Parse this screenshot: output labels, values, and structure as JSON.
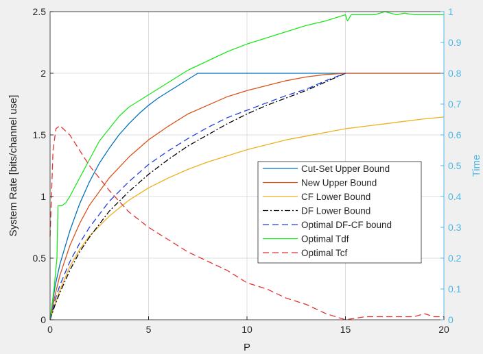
{
  "chart_data": {
    "type": "line",
    "xlabel": "P",
    "ylabel_left": "System Rate [bits/channel use]",
    "ylabel_right": "Time",
    "xlim": [
      0,
      20
    ],
    "ylim_left": [
      0,
      2.5
    ],
    "ylim_right": [
      0,
      1
    ],
    "x_ticks": [
      "0",
      "5",
      "10",
      "15",
      "20"
    ],
    "y_ticks_left": [
      "0",
      "0.5",
      "1",
      "1.5",
      "2",
      "2.5"
    ],
    "y_ticks_right": [
      "0",
      "0.1",
      "0.2",
      "0.3",
      "0.4",
      "0.5",
      "0.6",
      "0.7",
      "0.8",
      "0.9",
      "1"
    ],
    "grid": true,
    "legend_position": "center-right",
    "right_axis_color": "#4db8e8",
    "series": [
      {
        "name": "Cut-Set Upper Bound",
        "axis": "left",
        "color": "#0072bd",
        "dash": "solid",
        "x": [
          0,
          0.25,
          0.5,
          1,
          1.5,
          2,
          2.5,
          3,
          3.5,
          4,
          4.5,
          5,
          5.5,
          6,
          6.5,
          7,
          7.5,
          8,
          10,
          12,
          15,
          20
        ],
        "y": [
          0,
          0.27,
          0.45,
          0.72,
          0.94,
          1.12,
          1.27,
          1.39,
          1.5,
          1.59,
          1.67,
          1.74,
          1.8,
          1.85,
          1.9,
          1.95,
          2.0,
          2.0,
          2.0,
          2.0,
          2.0,
          2.0
        ]
      },
      {
        "name": "New Upper Bound",
        "axis": "left",
        "color": "#d95319",
        "dash": "solid",
        "x": [
          0,
          0.25,
          0.5,
          1,
          1.5,
          2,
          3,
          4,
          5,
          6,
          7,
          8,
          9,
          10,
          11,
          12,
          13,
          14,
          15,
          17.5,
          20
        ],
        "y": [
          0,
          0.2,
          0.36,
          0.6,
          0.78,
          0.93,
          1.15,
          1.32,
          1.46,
          1.57,
          1.67,
          1.74,
          1.81,
          1.86,
          1.9,
          1.94,
          1.97,
          1.99,
          2.0,
          2.0,
          2.0
        ]
      },
      {
        "name": "CF Lower Bound",
        "axis": "left",
        "color": "#edb120",
        "dash": "solid",
        "x": [
          0,
          0.25,
          0.5,
          1,
          1.5,
          2,
          3,
          4,
          5,
          6,
          7,
          8,
          9,
          10,
          11,
          12,
          13,
          14,
          15,
          16,
          17,
          18,
          19,
          20
        ],
        "y": [
          0,
          0.13,
          0.24,
          0.43,
          0.57,
          0.68,
          0.84,
          0.97,
          1.07,
          1.15,
          1.22,
          1.28,
          1.33,
          1.38,
          1.42,
          1.46,
          1.49,
          1.52,
          1.55,
          1.57,
          1.59,
          1.61,
          1.63,
          1.645
        ]
      },
      {
        "name": "DF Lower Bound",
        "axis": "left",
        "color": "#000000",
        "dash": "dashdot",
        "x": [
          0,
          0.25,
          0.5,
          1,
          1.5,
          2,
          3,
          4,
          5,
          6,
          7,
          8,
          9,
          10,
          11,
          12,
          13,
          14,
          15
        ],
        "y": [
          0,
          0.12,
          0.22,
          0.4,
          0.55,
          0.67,
          0.88,
          1.04,
          1.18,
          1.3,
          1.41,
          1.5,
          1.59,
          1.67,
          1.74,
          1.8,
          1.86,
          1.93,
          2.0
        ]
      },
      {
        "name": "Optimal DF-CF bound",
        "axis": "left",
        "color": "#1f3fe0",
        "dash": "dash",
        "x": [
          0,
          0.25,
          0.5,
          1,
          1.5,
          2,
          3,
          4,
          5,
          6,
          7,
          8,
          9,
          10,
          11,
          12,
          13,
          14,
          15
        ],
        "y": [
          0,
          0.16,
          0.28,
          0.47,
          0.62,
          0.75,
          0.96,
          1.12,
          1.26,
          1.37,
          1.47,
          1.56,
          1.64,
          1.7,
          1.76,
          1.82,
          1.87,
          1.94,
          2.0
        ]
      },
      {
        "name": "Optimal Tdf",
        "axis": "right",
        "color": "#1ee61e",
        "dash": "solid",
        "x": [
          0,
          0.2,
          0.35,
          0.4,
          0.6,
          0.8,
          1,
          1.5,
          2,
          2.5,
          3,
          3.5,
          4,
          5,
          6,
          7,
          8,
          9,
          10,
          11,
          12,
          13,
          14,
          14.5,
          15,
          15.1,
          15.3,
          16,
          16.5,
          17,
          17.3,
          17.6,
          18,
          18.5,
          19,
          19.5,
          20
        ],
        "y": [
          0,
          0.1,
          0.2,
          0.37,
          0.37,
          0.38,
          0.4,
          0.46,
          0.52,
          0.58,
          0.62,
          0.66,
          0.69,
          0.73,
          0.77,
          0.81,
          0.84,
          0.87,
          0.895,
          0.915,
          0.935,
          0.955,
          0.97,
          0.98,
          0.99,
          0.97,
          0.99,
          0.99,
          0.99,
          1.0,
          0.995,
          0.99,
          0.995,
          0.99,
          0.99,
          0.99,
          0.99
        ]
      },
      {
        "name": "Optimal Tcf",
        "axis": "right",
        "color": "#e63232",
        "dash": "dash",
        "x": [
          0,
          0.15,
          0.3,
          0.5,
          1,
          2,
          3,
          4,
          5,
          6,
          7,
          8,
          9,
          10,
          11,
          12,
          13,
          14,
          14.5,
          15,
          16,
          17,
          18,
          18.5,
          19,
          19.5,
          20
        ],
        "y": [
          0.27,
          0.55,
          0.62,
          0.63,
          0.6,
          0.5,
          0.42,
          0.35,
          0.3,
          0.26,
          0.22,
          0.19,
          0.16,
          0.12,
          0.1,
          0.07,
          0.05,
          0.02,
          0.01,
          0.0,
          0.01,
          0.01,
          0.01,
          0.01,
          0.02,
          0.01,
          0.01
        ]
      }
    ]
  }
}
